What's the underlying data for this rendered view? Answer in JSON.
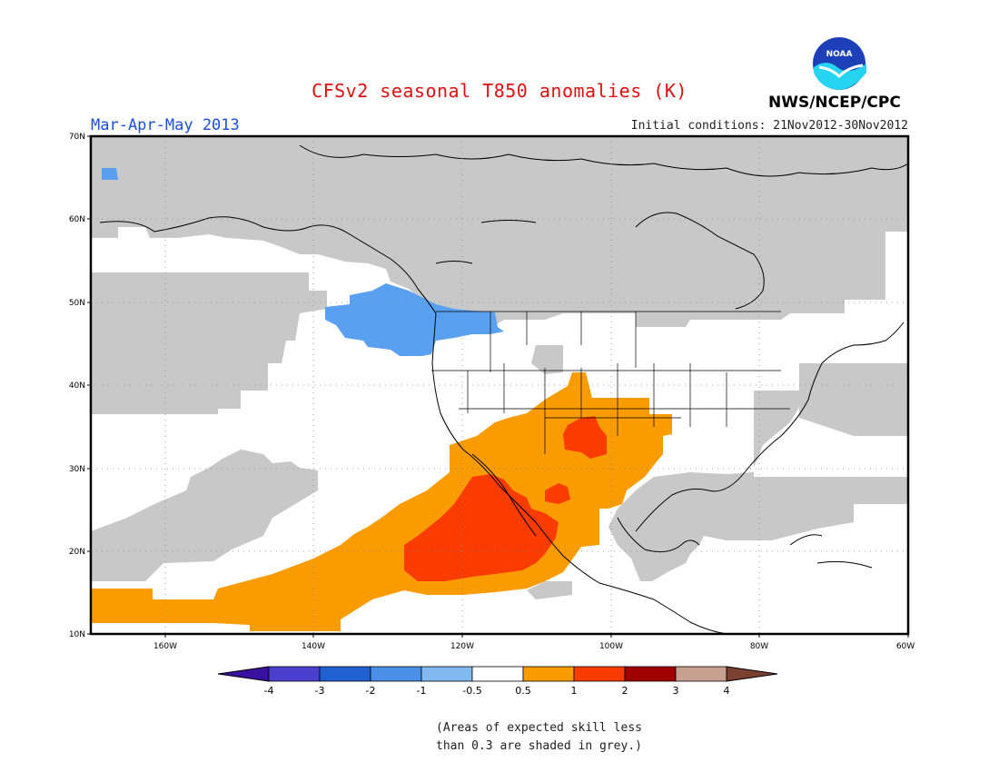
{
  "header": {
    "title": "CFSv2 seasonal T850 anomalies (K)",
    "season": "Mar-Apr-May 2013",
    "initial_conditions": "Initial conditions: 21Nov2012-30Nov2012",
    "agency": "NWS/NCEP/CPC",
    "logo_text": "NOAA"
  },
  "map": {
    "latitude_labels": [
      "70N",
      "60N",
      "50N",
      "40N",
      "30N",
      "20N",
      "10N"
    ],
    "longitude_labels": [
      "160W",
      "140W",
      "120W",
      "100W",
      "80W",
      "60W"
    ],
    "domain": {
      "lat_range": [
        10,
        70
      ],
      "lon_range": [
        -171,
        -60
      ]
    },
    "colors": {
      "low_skill_grey": "#c8c8c8",
      "anom_minus1": "#5aa0f0",
      "anom_0_5_to_1": "#fa9c00",
      "anom_1_to_2": "#fa3c00"
    }
  },
  "colorbar": {
    "labels": [
      "-4",
      "-3",
      "-2",
      "-1",
      "-0.5",
      "0.5",
      "1",
      "2",
      "3",
      "4"
    ],
    "colors": [
      "#3a10a0",
      "#4a40d0",
      "#2060d0",
      "#4a90e8",
      "#80b8f0",
      "#ffffff",
      "#fa9c00",
      "#fa3c00",
      "#a00000",
      "#c8a090",
      "#7a4030"
    ]
  },
  "footnote": {
    "line1": "(Areas of expected skill less",
    "line2": "than 0.3 are shaded in grey.)"
  }
}
